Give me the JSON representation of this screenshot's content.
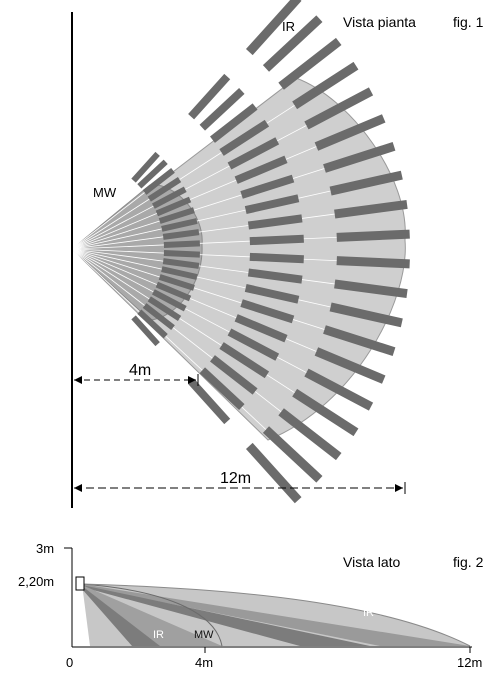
{
  "fig1": {
    "title": "Vista pianta",
    "fig_label": "fig. 1",
    "ir_label": "IR",
    "mw_label": "MW",
    "dim_near": "4m",
    "dim_far": "12m"
  },
  "fig2": {
    "title": "Vista lato",
    "fig_label": "fig. 2",
    "y_top": "3m",
    "y_mount": "2,20m",
    "x_labels": [
      "0",
      "4m",
      "12m"
    ],
    "ir_label_near": "IR",
    "mw_label": "MW",
    "ir_label_far": "IR"
  },
  "colors": {
    "zone_fill": "#cfcfcf",
    "mw_fill": "#a9a9a9",
    "segment": "#6b6b6b",
    "beam_line": "#ffffff",
    "axis": "#000000",
    "side_dark": "#7c7c7c",
    "side_mid": "#9a9a9a",
    "side_light": "#c7c7c7"
  }
}
